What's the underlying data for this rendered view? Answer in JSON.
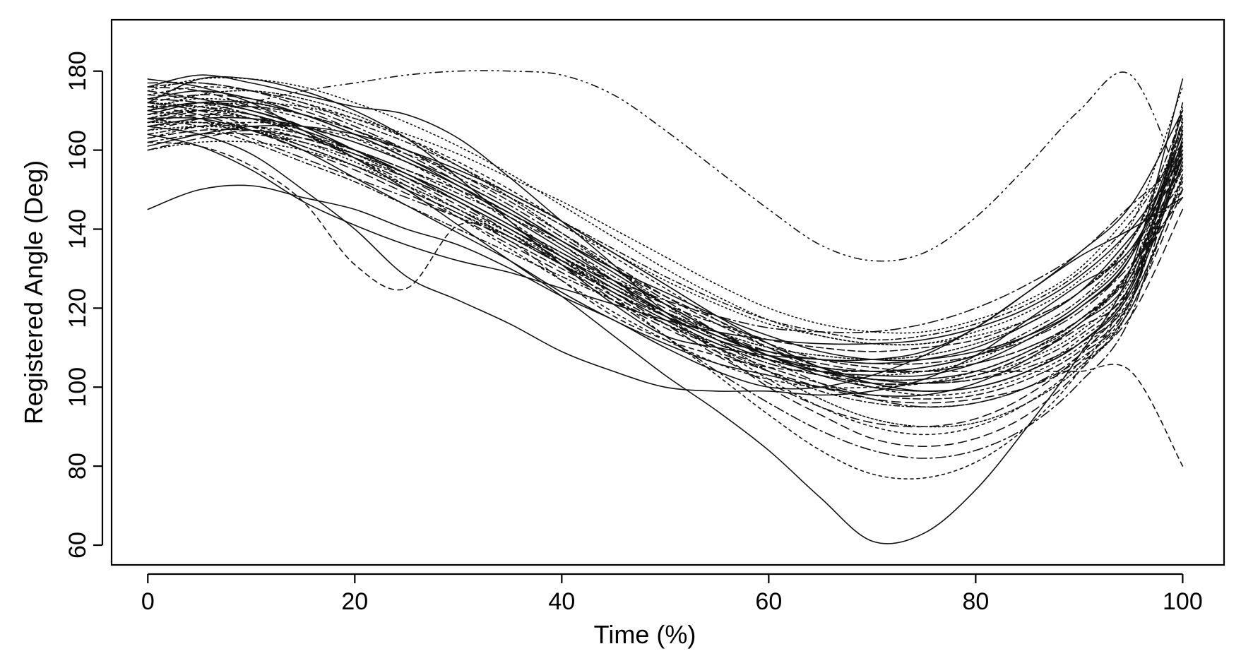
{
  "chart_data": {
    "type": "line",
    "title": "",
    "xlabel": "Time (%)",
    "ylabel": "Registered Angle (Deg)",
    "xlim": [
      -3.5,
      104
    ],
    "ylim": [
      55,
      193
    ],
    "xticks": [
      0,
      20,
      40,
      60,
      80,
      100
    ],
    "yticks": [
      60,
      80,
      100,
      120,
      140,
      160,
      180
    ],
    "grid": false,
    "legend": "none",
    "line_color": "#111111",
    "x": [
      0,
      5,
      10,
      15,
      20,
      25,
      30,
      35,
      40,
      45,
      50,
      55,
      60,
      65,
      70,
      75,
      80,
      85,
      90,
      95,
      100
    ],
    "series": [
      {
        "dash": "",
        "values": [
          178,
          176,
          172,
          165,
          158,
          150,
          141,
          132,
          123,
          113,
          103,
          94,
          84,
          72,
          61,
          63,
          74,
          90,
          108,
          130,
          178
        ]
      },
      {
        "dash": "10 6 2 6 2 6",
        "values": [
          165,
          168,
          172,
          175,
          177,
          179,
          180,
          180,
          179,
          174,
          165,
          155,
          145,
          136,
          132,
          134,
          143,
          156,
          170,
          179,
          150
        ]
      },
      {
        "dash": "7 6",
        "values": [
          162,
          161,
          156,
          147,
          131,
          125,
          141,
          137,
          127,
          118,
          112,
          108,
          105,
          104,
          104,
          104,
          104,
          104,
          104,
          104,
          80
        ]
      },
      {
        "dash": "",
        "values": [
          145,
          150,
          151,
          148,
          145,
          140,
          136,
          130,
          123,
          117,
          110,
          104,
          100,
          100,
          103,
          108,
          115,
          124,
          133,
          140,
          148
        ]
      },
      {
        "dash": "",
        "values": [
          166,
          164,
          159,
          150,
          140,
          128,
          122,
          116,
          109,
          104,
          100,
          99,
          99,
          98,
          99,
          102,
          108,
          117,
          126,
          135,
          160
        ]
      },
      {
        "dash": "",
        "values": [
          176,
          179,
          177,
          174,
          171,
          169,
          163,
          153,
          142,
          131,
          119,
          112,
          109,
          107,
          107,
          109,
          115,
          124,
          134,
          146,
          170
        ]
      },
      {
        "dash": "",
        "values": [
          172,
          178,
          178,
          175,
          170,
          163,
          153,
          142,
          131,
          121,
          113,
          110,
          108,
          107,
          106,
          107,
          110,
          116,
          124,
          138,
          155
        ]
      },
      {
        "dash": "",
        "values": [
          168,
          168,
          165,
          160,
          153,
          146,
          139,
          132,
          124,
          117,
          111,
          106,
          103,
          100,
          98,
          98,
          101,
          107,
          116,
          128,
          165
        ]
      },
      {
        "dash": "",
        "values": [
          170,
          172,
          170,
          166,
          160,
          154,
          148,
          141,
          133,
          125,
          118,
          112,
          107,
          104,
          103,
          103,
          106,
          112,
          120,
          133,
          162
        ]
      },
      {
        "dash": "",
        "values": [
          164,
          161,
          155,
          147,
          141,
          136,
          132,
          129,
          125,
          121,
          117,
          114,
          112,
          111,
          111,
          112,
          115,
          120,
          128,
          140,
          158
        ]
      },
      {
        "dash": "12 7",
        "values": [
          175,
          173,
          170,
          166,
          162,
          157,
          151,
          144,
          136,
          127,
          118,
          109,
          100,
          93,
          87,
          85,
          87,
          93,
          104,
          120,
          150
        ]
      },
      {
        "dash": "12 7",
        "values": [
          168,
          170,
          169,
          165,
          160,
          154,
          147,
          140,
          132,
          124,
          116,
          108,
          101,
          95,
          91,
          90,
          92,
          98,
          108,
          125,
          165
        ]
      },
      {
        "dash": "12 7",
        "values": [
          172,
          174,
          173,
          170,
          165,
          159,
          152,
          145,
          137,
          129,
          121,
          114,
          108,
          104,
          101,
          101,
          103,
          108,
          116,
          130,
          158
        ]
      },
      {
        "dash": "12 7",
        "values": [
          160,
          163,
          165,
          163,
          159,
          154,
          148,
          141,
          134,
          127,
          120,
          114,
          109,
          106,
          104,
          104,
          106,
          110,
          117,
          128,
          150
        ]
      },
      {
        "dash": "12 7",
        "values": [
          176,
          175,
          171,
          166,
          160,
          153,
          146,
          139,
          131,
          124,
          117,
          111,
          106,
          103,
          101,
          101,
          103,
          108,
          115,
          126,
          168
        ]
      },
      {
        "dash": "12 7",
        "values": [
          171,
          169,
          165,
          160,
          155,
          149,
          143,
          136,
          129,
          122,
          115,
          109,
          104,
          100,
          97,
          96,
          97,
          100,
          106,
          118,
          145
        ]
      },
      {
        "dash": "4 5",
        "values": [
          170,
          172,
          171,
          168,
          163,
          157,
          150,
          142,
          133,
          123,
          113,
          103,
          93,
          84,
          78,
          77,
          81,
          90,
          104,
          125,
          160
        ]
      },
      {
        "dash": "4 5",
        "values": [
          166,
          167,
          166,
          163,
          159,
          154,
          148,
          141,
          134,
          126,
          118,
          110,
          102,
          95,
          90,
          88,
          90,
          96,
          106,
          122,
          152
        ]
      },
      {
        "dash": "4 5",
        "values": [
          174,
          176,
          175,
          172,
          168,
          163,
          157,
          150,
          142,
          134,
          126,
          118,
          111,
          105,
          101,
          99,
          100,
          104,
          112,
          126,
          170
        ]
      },
      {
        "dash": "4 5",
        "values": [
          169,
          170,
          168,
          164,
          158,
          151,
          143,
          135,
          127,
          119,
          112,
          106,
          102,
          100,
          100,
          101,
          104,
          109,
          117,
          130,
          155
        ]
      },
      {
        "dash": "4 5",
        "values": [
          163,
          166,
          167,
          166,
          163,
          159,
          154,
          148,
          141,
          133,
          125,
          117,
          110,
          104,
          100,
          98,
          99,
          103,
          110,
          123,
          160
        ]
      },
      {
        "dash": "14 5 3 5",
        "values": [
          167,
          169,
          168,
          165,
          160,
          154,
          147,
          139,
          131,
          122,
          113,
          104,
          96,
          89,
          84,
          82,
          84,
          90,
          101,
          118,
          162
        ]
      },
      {
        "dash": "14 5 3 5",
        "values": [
          173,
          172,
          169,
          164,
          158,
          152,
          145,
          138,
          131,
          124,
          118,
          113,
          109,
          107,
          106,
          106,
          108,
          112,
          119,
          131,
          148
        ]
      },
      {
        "dash": "14 5 3 5",
        "values": [
          162,
          164,
          164,
          162,
          158,
          153,
          147,
          140,
          133,
          126,
          119,
          113,
          108,
          104,
          102,
          101,
          102,
          105,
          111,
          122,
          153
        ]
      },
      {
        "dash": "14 5 3 5",
        "values": [
          177,
          177,
          175,
          171,
          166,
          160,
          153,
          146,
          138,
          130,
          122,
          114,
          107,
          101,
          97,
          95,
          96,
          100,
          108,
          122,
          172
        ]
      },
      {
        "dash": "14 5 3 5",
        "values": [
          170,
          168,
          163,
          158,
          153,
          148,
          143,
          138,
          132,
          127,
          122,
          118,
          115,
          114,
          114,
          116,
          120,
          126,
          134,
          146,
          157
        ]
      },
      {
        "dash": "2 4",
        "values": [
          171,
          173,
          172,
          169,
          165,
          160,
          154,
          148,
          141,
          134,
          127,
          121,
          116,
          113,
          111,
          111,
          113,
          117,
          124,
          137,
          166
        ]
      },
      {
        "dash": "2 4",
        "values": [
          165,
          166,
          165,
          162,
          157,
          151,
          145,
          138,
          131,
          124,
          117,
          111,
          106,
          103,
          101,
          101,
          103,
          107,
          114,
          127,
          156
        ]
      },
      {
        "dash": "2 4",
        "values": [
          175,
          178,
          178,
          176,
          172,
          167,
          161,
          154,
          146,
          138,
          130,
          123,
          117,
          113,
          111,
          111,
          114,
          119,
          127,
          141,
          176
        ]
      },
      {
        "dash": "2 4",
        "values": [
          168,
          171,
          172,
          171,
          168,
          164,
          159,
          153,
          147,
          140,
          133,
          126,
          120,
          116,
          114,
          114,
          117,
          122,
          130,
          144,
          160
        ]
      },
      {
        "dash": "2 4",
        "values": [
          160,
          162,
          162,
          160,
          156,
          151,
          145,
          139,
          132,
          125,
          118,
          112,
          107,
          104,
          103,
          104,
          107,
          113,
          121,
          134,
          150
        ]
      },
      {
        "dash": "10 5",
        "values": [
          172,
          170,
          166,
          161,
          156,
          150,
          144,
          137,
          130,
          123,
          116,
          110,
          105,
          101,
          98,
          97,
          98,
          102,
          109,
          122,
          163
        ]
      },
      {
        "dash": "10 5",
        "values": [
          167,
          170,
          171,
          169,
          165,
          160,
          154,
          147,
          139,
          131,
          123,
          116,
          110,
          105,
          102,
          101,
          102,
          106,
          113,
          126,
          158
        ]
      },
      {
        "dash": "10 5",
        "values": [
          174,
          173,
          170,
          166,
          160,
          154,
          148,
          141,
          134,
          127,
          121,
          116,
          112,
          110,
          109,
          110,
          112,
          117,
          124,
          137,
          169
        ]
      },
      {
        "dash": "10 5",
        "values": [
          163,
          165,
          165,
          163,
          160,
          155,
          150,
          144,
          137,
          130,
          123,
          117,
          111,
          107,
          105,
          104,
          106,
          110,
          117,
          130,
          161
        ]
      },
      {
        "dash": "",
        "values": [
          169,
          172,
          172,
          169,
          164,
          158,
          151,
          143,
          135,
          127,
          119,
          113,
          108,
          105,
          104,
          105,
          108,
          113,
          121,
          134,
          164
        ]
      },
      {
        "dash": "",
        "values": [
          173,
          175,
          173,
          169,
          164,
          158,
          152,
          145,
          137,
          129,
          121,
          114,
          108,
          103,
          100,
          99,
          100,
          104,
          111,
          125,
          159
        ]
      },
      {
        "dash": "",
        "values": [
          166,
          168,
          168,
          166,
          162,
          157,
          151,
          144,
          137,
          130,
          124,
          118,
          113,
          109,
          107,
          107,
          109,
          113,
          120,
          133,
          167
        ]
      },
      {
        "dash": "",
        "values": [
          161,
          164,
          166,
          166,
          164,
          160,
          155,
          149,
          142,
          134,
          126,
          118,
          111,
          105,
          101,
          99,
          100,
          104,
          111,
          124,
          157
        ]
      },
      {
        "dash": "8 4 2 4",
        "values": [
          171,
          171,
          169,
          165,
          160,
          154,
          147,
          140,
          132,
          124,
          117,
          110,
          104,
          99,
          96,
          95,
          96,
          100,
          107,
          120,
          154
        ]
      },
      {
        "dash": "8 4 2 4",
        "values": [
          176,
          177,
          175,
          172,
          167,
          162,
          156,
          149,
          142,
          135,
          128,
          122,
          117,
          114,
          112,
          113,
          116,
          121,
          129,
          142,
          162
        ]
      },
      {
        "dash": "8 4 2 4",
        "values": [
          164,
          166,
          166,
          164,
          160,
          155,
          149,
          143,
          136,
          128,
          121,
          114,
          108,
          104,
          102,
          102,
          104,
          109,
          117,
          130,
          166
        ]
      },
      {
        "dash": "8 4 2 4",
        "values": [
          168,
          166,
          162,
          157,
          152,
          146,
          140,
          134,
          128,
          122,
          116,
          111,
          107,
          105,
          104,
          105,
          108,
          114,
          122,
          135,
          152
        ]
      },
      {
        "dash": "3 3",
        "values": [
          170,
          174,
          175,
          173,
          169,
          163,
          156,
          148,
          139,
          130,
          121,
          112,
          104,
          97,
          92,
          90,
          91,
          96,
          105,
          121,
          171
        ]
      },
      {
        "dash": "3 3",
        "values": [
          167,
          167,
          165,
          161,
          156,
          150,
          144,
          138,
          131,
          125,
          119,
          114,
          110,
          108,
          107,
          108,
          111,
          116,
          124,
          137,
          161
        ]
      },
      {
        "dash": "3 3",
        "values": [
          172,
          171,
          168,
          164,
          159,
          153,
          147,
          140,
          133,
          126,
          119,
          113,
          108,
          104,
          102,
          102,
          104,
          109,
          116,
          129,
          156
        ]
      }
    ]
  }
}
